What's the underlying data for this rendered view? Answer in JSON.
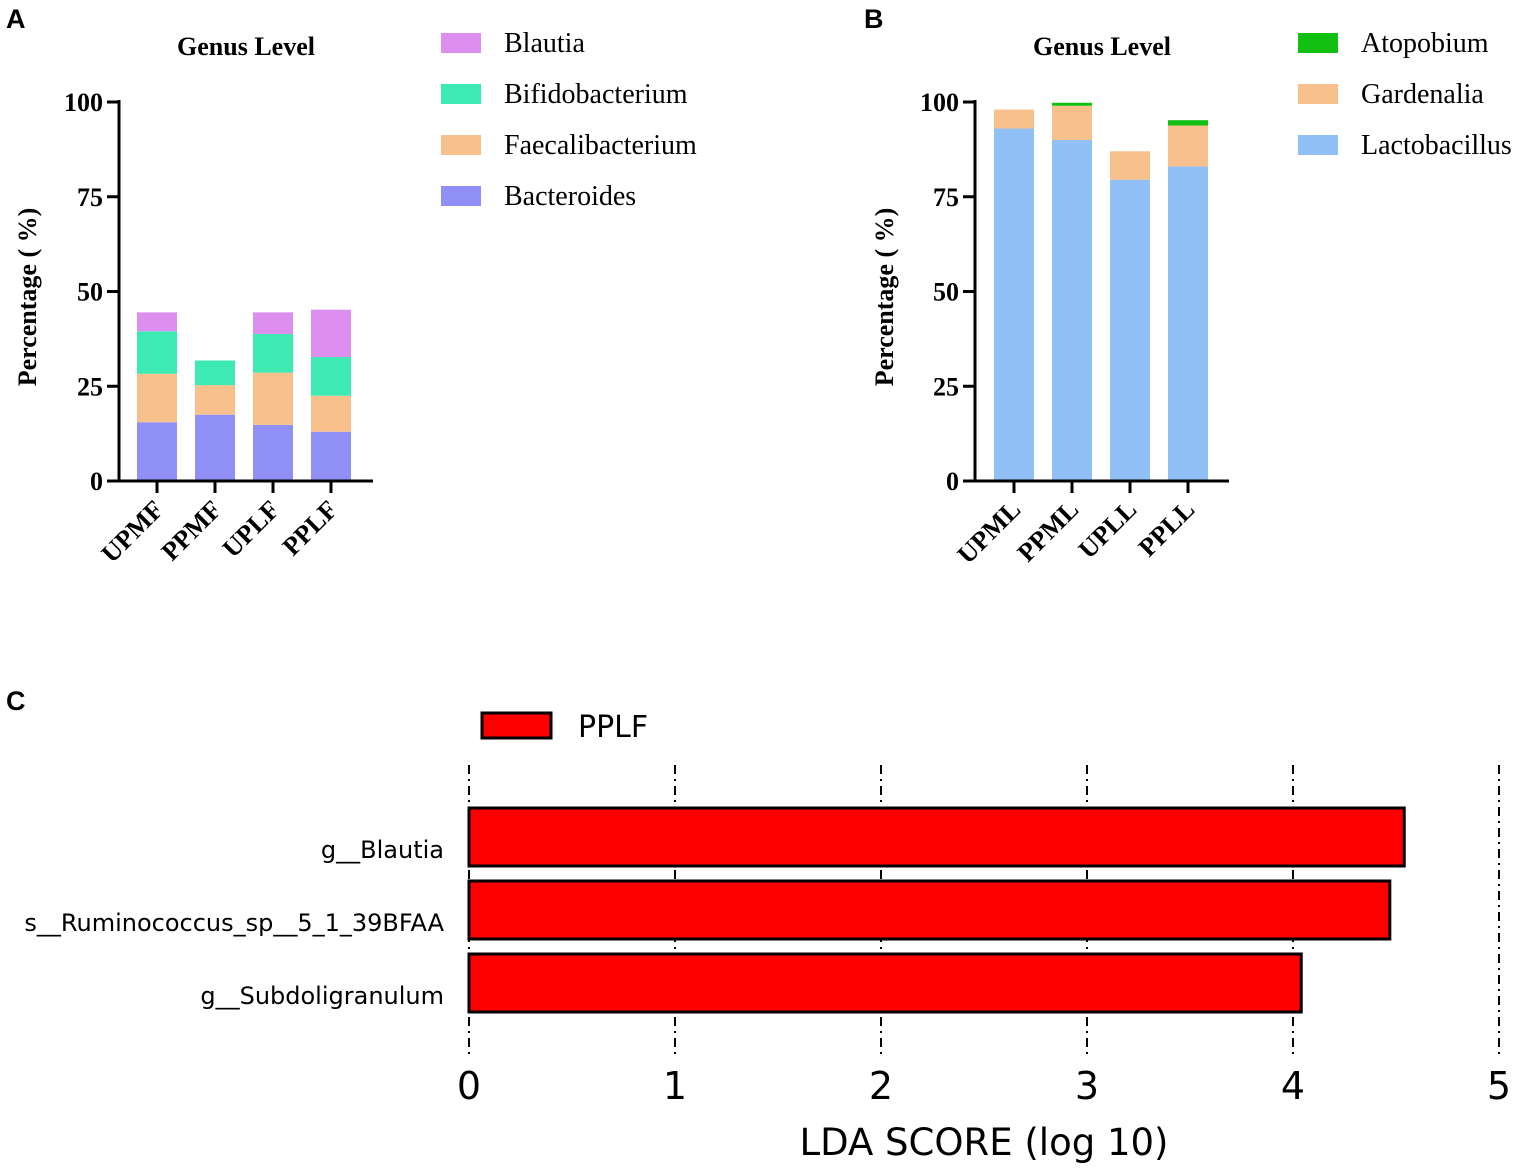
{
  "panels": {
    "a": "A",
    "b": "B",
    "c": "C"
  },
  "chart_data": [
    {
      "type": "bar",
      "stacked": true,
      "title": "Genus Level",
      "xlabel": "",
      "ylabel": "Percentage ( %)",
      "ylim": [
        0,
        100
      ],
      "yticks": [
        "0",
        "25",
        "50",
        "75",
        "100"
      ],
      "categories": [
        "UPMF",
        "PPMF",
        "UPLF",
        "PPLF"
      ],
      "series": [
        {
          "name": "Bacteroides",
          "color": "#8f8ff5",
          "values": [
            15.5,
            17.5,
            14.8,
            13.0
          ]
        },
        {
          "name": "Faecalibacterium",
          "color": "#f8c08c",
          "values": [
            12.8,
            7.8,
            13.8,
            9.5
          ]
        },
        {
          "name": "Bifidobacterium",
          "color": "#3eeab4",
          "values": [
            11.2,
            6.5,
            10.2,
            10.2
          ]
        },
        {
          "name": "Blautia",
          "color": "#dd8ff0",
          "values": [
            5.0,
            0,
            5.7,
            12.5
          ]
        }
      ],
      "legend_order": [
        "Blautia",
        "Bifidobacterium",
        "Faecalibacterium",
        "Bacteroides"
      ],
      "legend": "right"
    },
    {
      "type": "bar",
      "stacked": true,
      "title": "Genus Level",
      "xlabel": "",
      "ylabel": "Percentage ( %)",
      "ylim": [
        0,
        100
      ],
      "yticks": [
        "0",
        "25",
        "50",
        "75",
        "100"
      ],
      "categories": [
        "UPML",
        "PPML",
        "UPLL",
        "PPLL"
      ],
      "series": [
        {
          "name": "Lactobacillus",
          "color": "#90c0f5",
          "values": [
            93.0,
            90.0,
            79.5,
            83.0
          ]
        },
        {
          "name": "Gardenalia",
          "color": "#f8c08c",
          "values": [
            5.0,
            9.0,
            7.5,
            10.8
          ]
        },
        {
          "name": "Atopobium",
          "color": "#12c012",
          "values": [
            0,
            0.8,
            0,
            1.4
          ]
        }
      ],
      "legend_order": [
        "Atopobium",
        "Gardenalia",
        "Lactobacillus"
      ],
      "legend": "right"
    },
    {
      "type": "bar",
      "orientation": "horizontal",
      "title": "",
      "xlabel": "LDA SCORE (log 10)",
      "ylabel": "",
      "xlim": [
        0,
        5
      ],
      "xticks": [
        "0",
        "1",
        "2",
        "3",
        "4",
        "5"
      ],
      "categories": [
        "g__Blautia",
        "s__Ruminococcus_sp__5_1_39BFAA",
        "g__Subdoligranulum"
      ],
      "values": [
        4.54,
        4.47,
        4.04
      ],
      "legend_label": "PPLF",
      "color": "#ff0000"
    }
  ]
}
